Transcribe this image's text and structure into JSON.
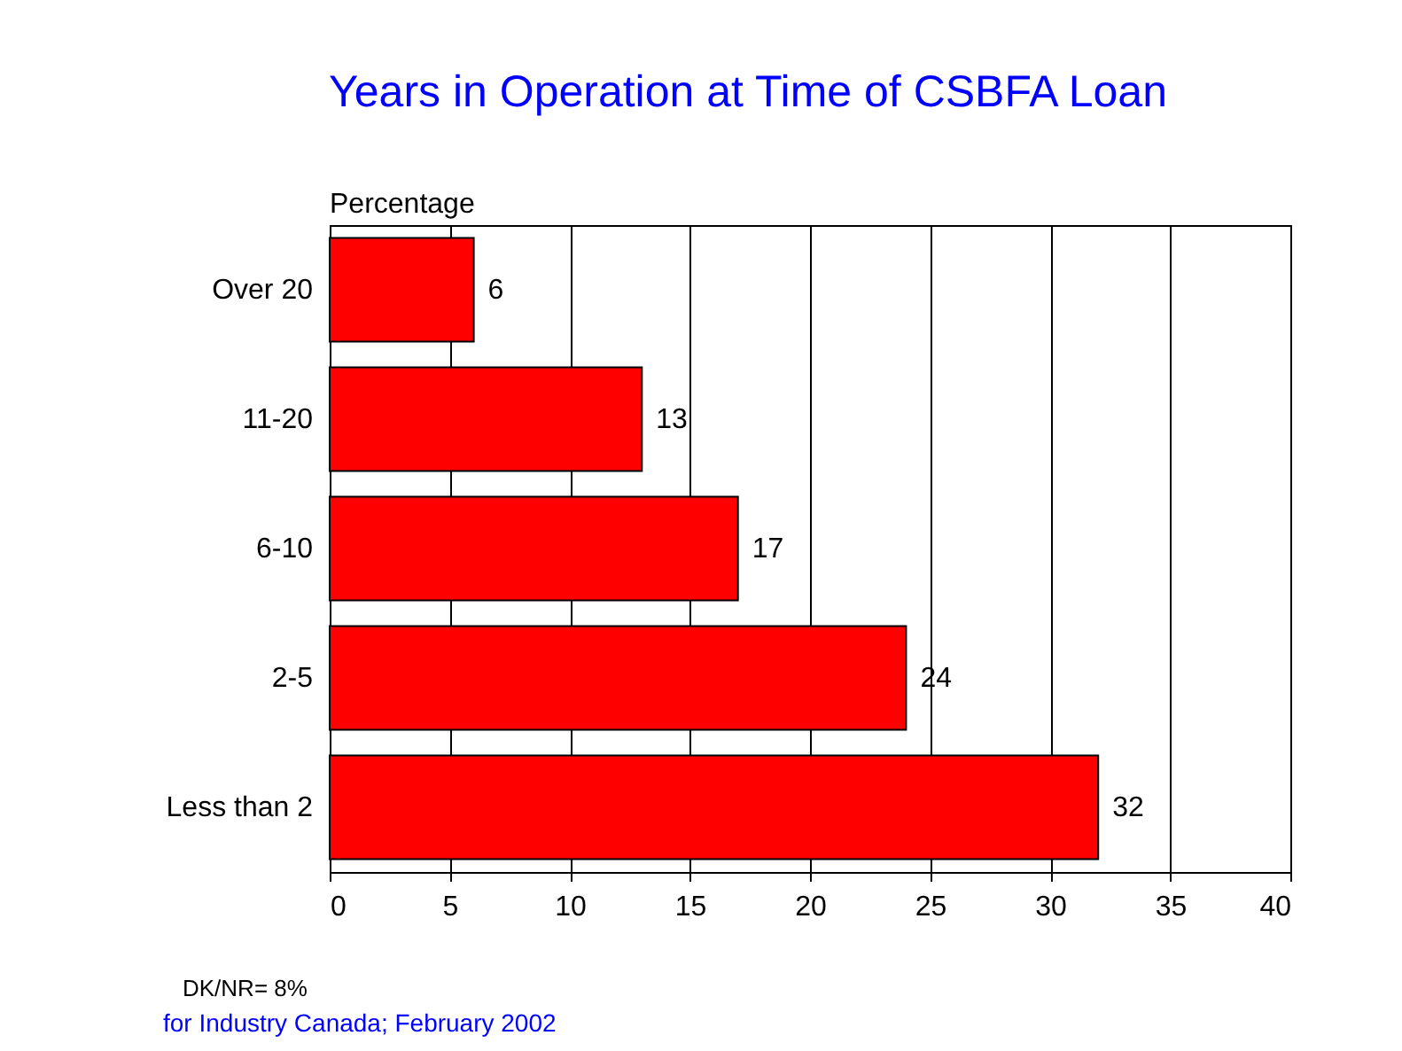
{
  "chart_data": {
    "type": "bar",
    "orientation": "horizontal",
    "title": "Years in Operation at Time of CSBFA Loan",
    "xlabel": "Percentage",
    "categories": [
      "Over 20",
      "11-20",
      "6-10",
      "2-5",
      "Less than 2"
    ],
    "values": [
      6,
      13,
      17,
      24,
      32
    ],
    "color": "#ff0000",
    "data_labels": true,
    "xlim": [
      0,
      40
    ],
    "xticks": [
      0,
      5,
      10,
      15,
      20,
      25,
      30,
      35,
      40
    ],
    "grid": "x",
    "annotations": [
      "DK/NR= 8%",
      "for Industry Canada; February 2002"
    ]
  }
}
